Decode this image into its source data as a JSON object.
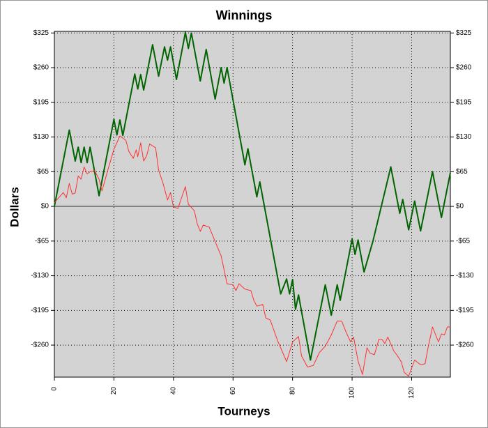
{
  "chart_data": {
    "type": "line",
    "title": "Winnings",
    "xlabel": "Tourneys",
    "ylabel": "Dollars",
    "xlim": [
      0,
      133
    ],
    "xticks": [
      0,
      20,
      40,
      60,
      80,
      100,
      120
    ],
    "ylim": [
      -320,
      328
    ],
    "yticks": [
      {
        "value": -260,
        "label": "-$260"
      },
      {
        "value": -195,
        "label": "-$195"
      },
      {
        "value": -130,
        "label": "-$130"
      },
      {
        "value": -65,
        "label": "-$65"
      },
      {
        "value": 0,
        "label": "$0"
      },
      {
        "value": 65,
        "label": "$65"
      },
      {
        "value": 130,
        "label": "$130"
      },
      {
        "value": 195,
        "label": "$195"
      },
      {
        "value": 260,
        "label": "$260"
      },
      {
        "value": 325,
        "label": "$325"
      }
    ],
    "grid": true,
    "series": [
      {
        "color": "#006400",
        "width": 2,
        "x": [
          0,
          5,
          7,
          8,
          9,
          10,
          11,
          12,
          15,
          20,
          21,
          22,
          23,
          27,
          28,
          29,
          30,
          33,
          35,
          37,
          38,
          39,
          41,
          44,
          45,
          46,
          49,
          51,
          54,
          56,
          57,
          58,
          64,
          65,
          68,
          69,
          76,
          78,
          79,
          80,
          81,
          82,
          86,
          91,
          93,
          95,
          96,
          100,
          101,
          102,
          104,
          107,
          113,
          116,
          117,
          119,
          121,
          123,
          127,
          130,
          133
        ],
        "values": [
          0,
          143,
          85,
          111,
          82,
          111,
          82,
          111,
          20,
          163,
          134,
          162,
          133,
          248,
          220,
          247,
          218,
          303,
          244,
          299,
          274,
          299,
          238,
          326,
          296,
          325,
          235,
          294,
          201,
          260,
          231,
          260,
          78,
          108,
          18,
          46,
          -164,
          -136,
          -164,
          -137,
          -193,
          -166,
          -288,
          -147,
          -204,
          -147,
          -176,
          -61,
          -90,
          -63,
          -123,
          -65,
          74,
          -13,
          13,
          -44,
          10,
          -46,
          65,
          -21,
          63
        ]
      },
      {
        "color": "#ff3030",
        "width": 1,
        "x": [
          0,
          3,
          4,
          5,
          6,
          7,
          8,
          9,
          10,
          11,
          12,
          13.5,
          15,
          16,
          18,
          20,
          22,
          24,
          25,
          26.5,
          27.5,
          28,
          29,
          30,
          31,
          32,
          34,
          35,
          36.5,
          38,
          39,
          40,
          41.5,
          44,
          45,
          47,
          48,
          49,
          50,
          52,
          56,
          58,
          60,
          61,
          62,
          64,
          66,
          67,
          68,
          70,
          71,
          72.5,
          75,
          78,
          80,
          82,
          83,
          85,
          87,
          89,
          91,
          93,
          94,
          95,
          96.5,
          98,
          99.5,
          100.5,
          102,
          103.5,
          105,
          106,
          107.5,
          109,
          110,
          111,
          112,
          114,
          115,
          116.5,
          117.5,
          119,
          121,
          123,
          124.5,
          125.5,
          127,
          129,
          130,
          131,
          132,
          133
        ],
        "values": [
          7,
          26,
          16,
          43,
          23,
          25,
          57,
          51,
          74,
          61,
          65,
          67,
          51,
          29,
          69,
          107,
          132,
          124,
          103,
          90,
          106,
          93,
          119,
          85,
          95,
          117,
          110,
          68,
          43,
          12,
          26,
          -1,
          -4,
          37,
          4,
          -8,
          -33,
          -47,
          -35,
          -39,
          -93,
          -145,
          -147,
          -158,
          -145,
          -155,
          -158,
          -176,
          -187,
          -184,
          -209,
          -213,
          -252,
          -291,
          -254,
          -244,
          -280,
          -301,
          -298,
          -274,
          -262,
          -241,
          -228,
          -215,
          -215,
          -236,
          -254,
          -245,
          -290,
          -315,
          -265,
          -275,
          -278,
          -249,
          -249,
          -257,
          -245,
          -271,
          -278,
          -291,
          -311,
          -318,
          -288,
          -297,
          -295,
          -265,
          -226,
          -254,
          -239,
          -241,
          -226,
          -226
        ]
      }
    ]
  }
}
